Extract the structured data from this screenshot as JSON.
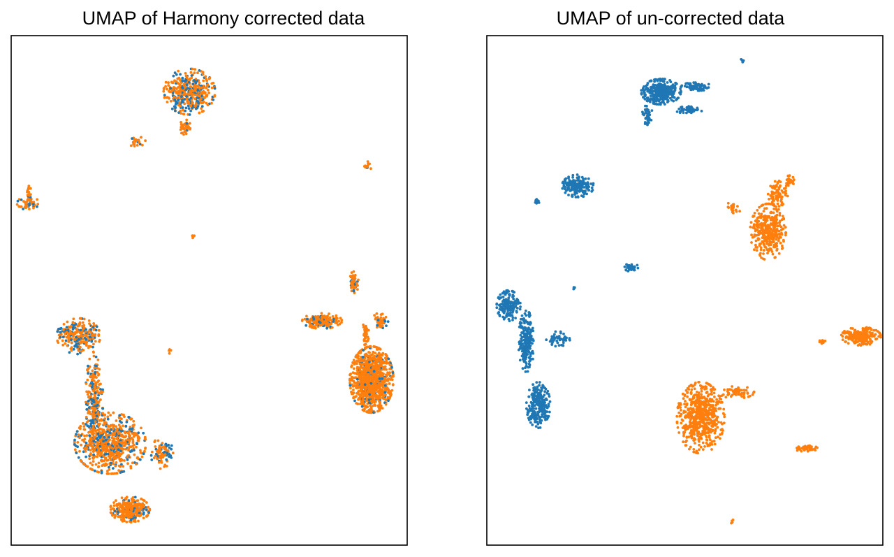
{
  "figure": {
    "colors": {
      "batch_a": "#1f77b4",
      "batch_b": "#ff7f0e",
      "frame": "#000000",
      "background": "#ffffff"
    }
  },
  "chart_data": [
    {
      "type": "scatter",
      "title": "UMAP of Harmony corrected data",
      "xlabel": "",
      "ylabel": "",
      "ticks": "none",
      "grid": false,
      "legend": "none",
      "xlim": [
        0,
        100
      ],
      "ylim": [
        0,
        100
      ],
      "clusters": [
        {
          "cx": 45,
          "cy": 89,
          "rx": 6.5,
          "ry": 4.5,
          "n": 420,
          "mix": 0.3
        },
        {
          "cx": 44,
          "cy": 82,
          "rx": 1.6,
          "ry": 1.5,
          "n": 40,
          "mix": 0.05
        },
        {
          "cx": 32,
          "cy": 79,
          "rx": 2.0,
          "ry": 1.2,
          "n": 20,
          "mix": 0.25
        },
        {
          "cx": 90,
          "cy": 74.5,
          "rx": 1.0,
          "ry": 1.0,
          "n": 12,
          "mix": 0.1
        },
        {
          "cx": 4.5,
          "cy": 67,
          "rx": 3.0,
          "ry": 1.5,
          "n": 55,
          "mix": 0.35
        },
        {
          "cx": 4.5,
          "cy": 69,
          "rx": 0.6,
          "ry": 1.5,
          "n": 15,
          "mix": 0.1
        },
        {
          "cx": 46,
          "cy": 60.5,
          "rx": 0.5,
          "ry": 0.5,
          "n": 5,
          "mix": 0.0
        },
        {
          "cx": 17,
          "cy": 41,
          "rx": 5.5,
          "ry": 3.5,
          "n": 260,
          "mix": 0.35
        },
        {
          "cx": 21,
          "cy": 29,
          "rx": 2.2,
          "ry": 9.0,
          "n": 260,
          "mix": 0.3
        },
        {
          "cx": 25,
          "cy": 20,
          "rx": 9.0,
          "ry": 6.0,
          "n": 700,
          "mix": 0.25
        },
        {
          "cx": 30,
          "cy": 7,
          "rx": 5.0,
          "ry": 2.5,
          "n": 300,
          "mix": 0.15
        },
        {
          "cx": 38,
          "cy": 18,
          "rx": 3.0,
          "ry": 3.0,
          "n": 80,
          "mix": 0.35
        },
        {
          "cx": 40,
          "cy": 38,
          "rx": 0.6,
          "ry": 0.6,
          "n": 4,
          "mix": 0.0
        },
        {
          "cx": 78.5,
          "cy": 44,
          "rx": 5.0,
          "ry": 1.5,
          "n": 180,
          "mix": 0.2
        },
        {
          "cx": 91,
          "cy": 32.5,
          "rx": 5.5,
          "ry": 6.5,
          "n": 1000,
          "mix": 0.08
        },
        {
          "cx": 86.5,
          "cy": 51.5,
          "rx": 1.2,
          "ry": 2.2,
          "n": 60,
          "mix": 0.25
        },
        {
          "cx": 93,
          "cy": 44,
          "rx": 2.2,
          "ry": 1.5,
          "n": 45,
          "mix": 0.3
        },
        {
          "cx": 89.5,
          "cy": 41,
          "rx": 0.9,
          "ry": 3.0,
          "n": 35,
          "mix": 0.2
        }
      ]
    },
    {
      "type": "scatter",
      "title": "UMAP of un-corrected data",
      "xlabel": "",
      "ylabel": "",
      "ticks": "none",
      "grid": false,
      "legend": "none",
      "xlim": [
        0,
        100
      ],
      "ylim": [
        0,
        100
      ],
      "clusters": [
        {
          "cx": 44,
          "cy": 89,
          "rx": 5.0,
          "ry": 2.5,
          "n": 340,
          "mix": 0.0
        },
        {
          "cx": 53,
          "cy": 90,
          "rx": 4.0,
          "ry": 0.8,
          "n": 70,
          "mix": 0.0
        },
        {
          "cx": 51,
          "cy": 85.5,
          "rx": 3.5,
          "ry": 0.8,
          "n": 55,
          "mix": 0.0
        },
        {
          "cx": 40.5,
          "cy": 84.5,
          "rx": 1.3,
          "ry": 2.0,
          "n": 45,
          "mix": 0.0
        },
        {
          "cx": 64.5,
          "cy": 95,
          "rx": 0.5,
          "ry": 0.5,
          "n": 5,
          "mix": 0.0
        },
        {
          "cx": 23,
          "cy": 70.5,
          "rx": 4.0,
          "ry": 2.2,
          "n": 180,
          "mix": 0.0
        },
        {
          "cx": 13,
          "cy": 67.5,
          "rx": 0.8,
          "ry": 0.7,
          "n": 8,
          "mix": 0.0
        },
        {
          "cx": 36.5,
          "cy": 54.5,
          "rx": 1.8,
          "ry": 0.8,
          "n": 30,
          "mix": 0.0
        },
        {
          "cx": 22,
          "cy": 50.5,
          "rx": 0.5,
          "ry": 0.5,
          "n": 4,
          "mix": 0.0
        },
        {
          "cx": 5.5,
          "cy": 47,
          "rx": 3.0,
          "ry": 3.0,
          "n": 170,
          "mix": 0.0
        },
        {
          "cx": 10,
          "cy": 40,
          "rx": 2.0,
          "ry": 6.0,
          "n": 220,
          "mix": 0.0
        },
        {
          "cx": 13,
          "cy": 27.5,
          "rx": 3.0,
          "ry": 4.5,
          "n": 230,
          "mix": 0.0
        },
        {
          "cx": 18,
          "cy": 40.5,
          "rx": 3.0,
          "ry": 1.5,
          "n": 50,
          "mix": 0.0
        },
        {
          "cx": 71,
          "cy": 61.5,
          "rx": 4.5,
          "ry": 5.5,
          "n": 380,
          "mix": 1.0
        },
        {
          "cx": 73.5,
          "cy": 69,
          "rx": 2.5,
          "ry": 2.5,
          "n": 80,
          "mix": 1.0
        },
        {
          "cx": 62,
          "cy": 66,
          "rx": 2.0,
          "ry": 1.3,
          "n": 25,
          "mix": 1.0
        },
        {
          "cx": 76.5,
          "cy": 71.5,
          "rx": 1.5,
          "ry": 1.2,
          "n": 25,
          "mix": 1.0
        },
        {
          "cx": 94.5,
          "cy": 41,
          "rx": 5.0,
          "ry": 1.8,
          "n": 200,
          "mix": 1.0
        },
        {
          "cx": 85,
          "cy": 40,
          "rx": 1.0,
          "ry": 0.5,
          "n": 10,
          "mix": 1.0
        },
        {
          "cx": 54,
          "cy": 25,
          "rx": 6.0,
          "ry": 7.0,
          "n": 600,
          "mix": 1.0
        },
        {
          "cx": 63,
          "cy": 30,
          "rx": 4.5,
          "ry": 1.2,
          "n": 60,
          "mix": 1.0
        },
        {
          "cx": 80.5,
          "cy": 19,
          "rx": 3.0,
          "ry": 0.6,
          "n": 45,
          "mix": 1.0
        },
        {
          "cx": 62,
          "cy": 4.5,
          "rx": 0.6,
          "ry": 0.5,
          "n": 5,
          "mix": 1.0
        }
      ]
    }
  ]
}
